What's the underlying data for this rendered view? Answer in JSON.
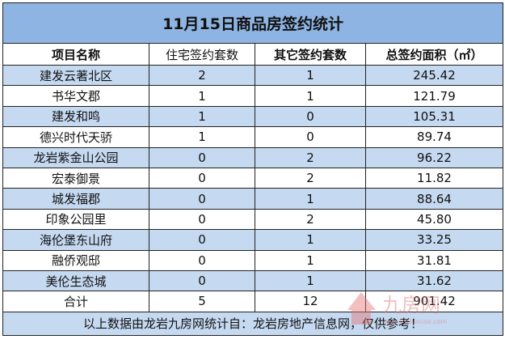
{
  "title": "11月15日商品房签约统计",
  "headers": [
    "项目名称",
    "住宅签约套数",
    "其它签约套数",
    "总签约面积（㎡）"
  ],
  "rows": [
    [
      "建发云著北区",
      "2",
      "1",
      "245.42"
    ],
    [
      "书华文郡",
      "1",
      "1",
      "121.79"
    ],
    [
      "建发和鸣",
      "1",
      "0",
      "105.31"
    ],
    [
      "德兴时代天骄",
      "1",
      "0",
      "89.74"
    ],
    [
      "龙岩紫金山公园",
      "0",
      "2",
      "96.22"
    ],
    [
      "宏泰御景",
      "0",
      "2",
      "11.82"
    ],
    [
      "城发福郡",
      "0",
      "1",
      "88.64"
    ],
    [
      "印象公园里",
      "0",
      "2",
      "45.80"
    ],
    [
      "海伦堡东山府",
      "0",
      "1",
      "33.25"
    ],
    [
      "融侨观邸",
      "0",
      "1",
      "31.81"
    ],
    [
      "美伦生态城",
      "0",
      "1",
      "31.62"
    ]
  ],
  "total": [
    "合计",
    "5",
    "12",
    "901.42"
  ],
  "footer": "以上数据由龙岩九房网统计自：龙岩房地产信息网，仅供参考！",
  "watermark": {
    "logo_text": "九房网",
    "url_text": "www.999house.com",
    "color": "#e57373"
  },
  "colors": {
    "title_bg": "#8db4e2",
    "stripe_bg": "#c5d9f1"
  }
}
